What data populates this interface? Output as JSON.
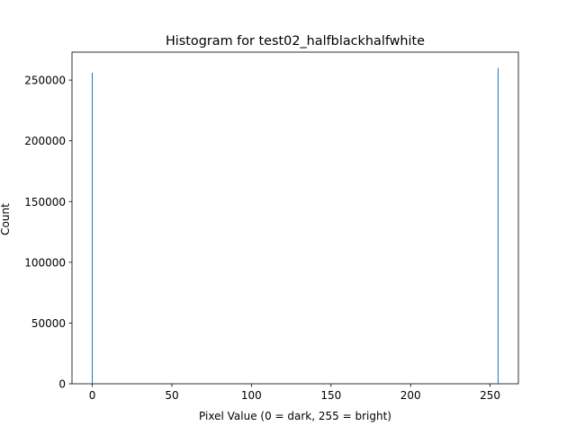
{
  "chart_data": {
    "type": "bar",
    "title": "Histogram for test02_halfblackhalfwhite",
    "xlabel": "Pixel Value (0 = dark, 255 = bright)",
    "ylabel": "Count",
    "xlim": [
      -12.75,
      267.75
    ],
    "ylim": [
      0,
      273000
    ],
    "xticks": [
      0,
      50,
      100,
      150,
      200,
      250
    ],
    "yticks": [
      0,
      50000,
      100000,
      150000,
      200000,
      250000
    ],
    "bars": [
      {
        "x": 0,
        "value": 256000
      },
      {
        "x": 255,
        "value": 260000
      }
    ],
    "bar_color": "#1f77b4",
    "grid": false
  }
}
